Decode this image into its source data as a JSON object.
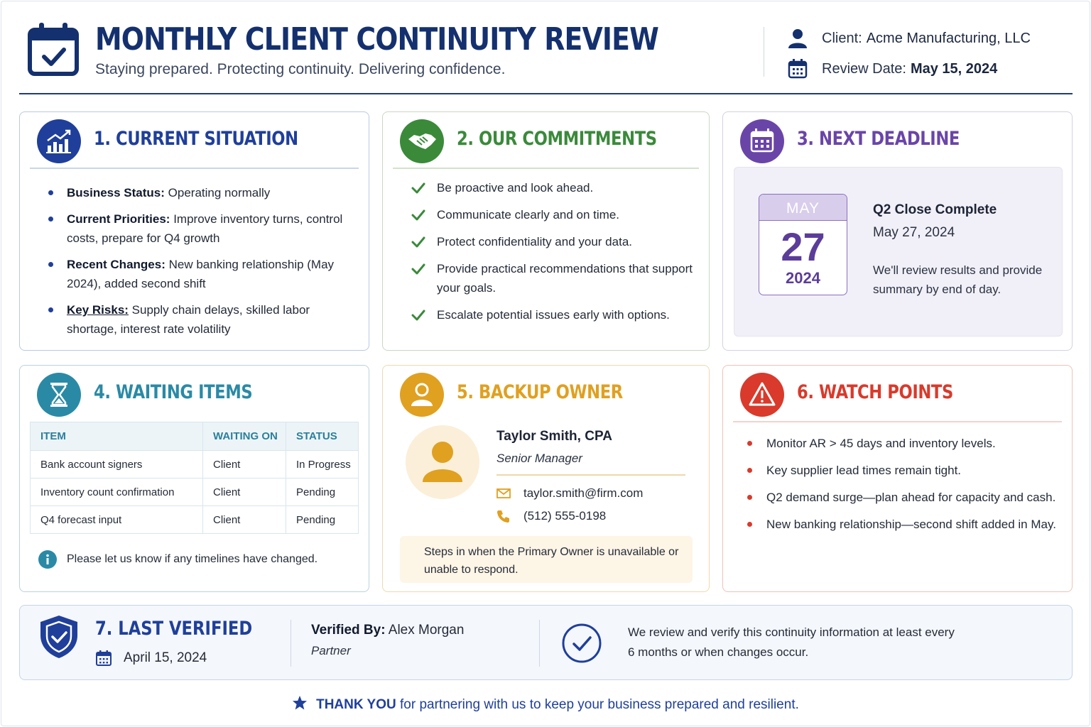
{
  "header": {
    "title": "MONTHLY CLIENT CONTINUITY REVIEW",
    "subtitle": "Staying prepared. Protecting continuity. Delivering confidence.",
    "client_label": "Client:",
    "client_value": "Acme Manufacturing, LLC",
    "review_date_label": "Review Date:",
    "review_date_value": "May 15, 2024",
    "icons": [
      "calendar-check-icon",
      "user-icon",
      "calendar-icon"
    ]
  },
  "current_situation": {
    "title": "1. CURRENT SITUATION",
    "icon": "chart-up-icon",
    "accent": "#1f3f9a",
    "items": [
      {
        "label": "Business Status:",
        "text": " Operating normally"
      },
      {
        "label": "Current Priorities:",
        "text": " Improve inventory turns, control costs, prepare for Q4 growth"
      },
      {
        "label": "Recent Changes:",
        "text": " New banking relationship (May 2024), added second shift"
      },
      {
        "label": "Key Risks:",
        "text": " Supply chain delays, skilled labor shortage, interest rate volatility"
      }
    ]
  },
  "commitments": {
    "title": "2. OUR COMMITMENTS",
    "icon": "handshake-icon",
    "accent": "#3a8a3a",
    "items": [
      "Be proactive and look ahead.",
      "Communicate clearly and on time.",
      "Protect confidentiality and your data.",
      "Provide practical recommendations that support your goals.",
      "Escalate potential issues early with options."
    ]
  },
  "next_deadline": {
    "title": "3. NEXT DEADLINE",
    "icon": "calendar-icon",
    "accent": "#6a45a8",
    "month": "MAY",
    "day": "27",
    "year": "2024",
    "event": "Q2 Close Complete",
    "date": "May 27, 2024",
    "note": "We'll review results and provide summary by end of day."
  },
  "waiting_items": {
    "title": "4. WAITING ITEMS",
    "icon": "hourglass-icon",
    "accent": "#2a8aa6",
    "columns": [
      "ITEM",
      "WAITING ON",
      "STATUS"
    ],
    "rows": [
      [
        "Bank account signers",
        "Client",
        "In Progress"
      ],
      [
        "Inventory count confirmation",
        "Client",
        "Pending"
      ],
      [
        "Q4 forecast input",
        "Client",
        "Pending"
      ]
    ],
    "note": "Please let us know if any timelines have changed."
  },
  "backup_owner": {
    "title": "5. BACKUP OWNER",
    "icon": "person-icon",
    "accent": "#e0a020",
    "name": "Taylor Smith, CPA",
    "role": "Senior Manager",
    "email": "taylor.smith@firm.com",
    "phone": "(512) 555-0198",
    "note": "Steps in when the Primary Owner is unavailable or unable to respond."
  },
  "watch_points": {
    "title": "6. WATCH POINTS",
    "icon": "warning-icon",
    "accent": "#d93a2b",
    "items": [
      "Monitor AR > 45 days and inventory levels.",
      "Key supplier lead times remain tight.",
      "Q2 demand surge—plan ahead for capacity and cash.",
      "New banking relationship—second shift added in May."
    ]
  },
  "last_verified": {
    "title": "7. LAST VERIFIED",
    "icon": "shield-check-icon",
    "date": "April 15, 2024",
    "verified_by_label": "Verified By:",
    "verified_by_name": "Alex Morgan",
    "verified_by_role": "Partner",
    "note": "We review and verify this continuity information at least every 6 months or when changes occur."
  },
  "footer": {
    "emphasis": "THANK YOU",
    "text": " for partnering with us to keep your business prepared and resilient.",
    "icon": "star-icon"
  }
}
